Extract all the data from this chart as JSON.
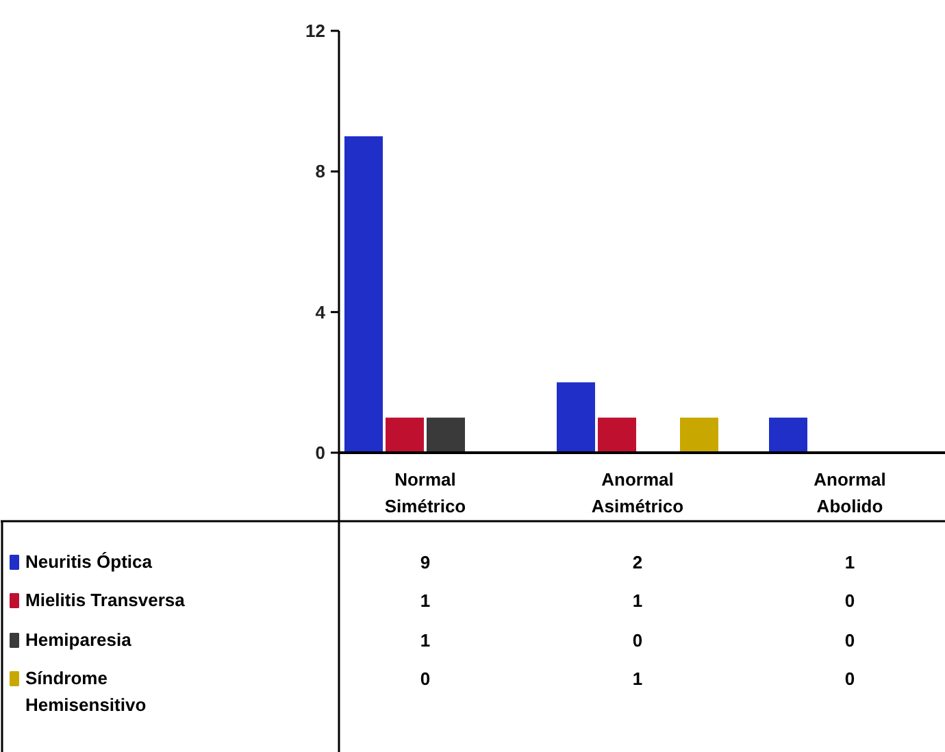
{
  "chart_data": {
    "type": "bar",
    "categories": [
      "Normal Simétrico",
      "Anormal Asimétrico",
      "Anormal Abolido"
    ],
    "series": [
      {
        "name": "Neuritis Óptica",
        "color": "#1f2fc8",
        "values": [
          9,
          2,
          1
        ]
      },
      {
        "name": "Mielitis Transversa",
        "color": "#c01030",
        "values": [
          1,
          1,
          0
        ]
      },
      {
        "name": "Hemiparesia",
        "color": "#3a3a3a",
        "values": [
          1,
          0,
          0
        ]
      },
      {
        "name": "Síndrome Hemisensitivo",
        "color": "#c8a800",
        "values": [
          0,
          1,
          0
        ]
      }
    ],
    "ylim": [
      0,
      12
    ],
    "yticks": [
      0,
      4,
      8,
      12
    ],
    "grid": false,
    "legend": "bottom left",
    "data_labels": true
  }
}
